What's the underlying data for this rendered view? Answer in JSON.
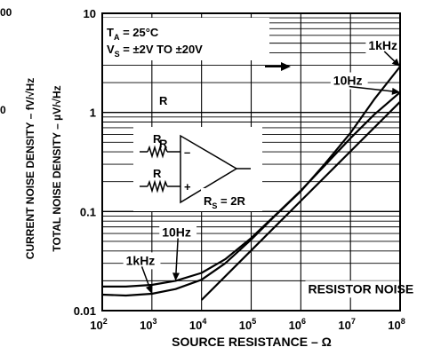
{
  "chart_data": {
    "type": "line",
    "x_scale": "log",
    "y_scale": "log",
    "xlim": [
      100,
      100000000
    ],
    "ylim": [
      0.01,
      10
    ],
    "grid": true,
    "xlabel": "SOURCE RESISTANCE – Ω",
    "ylabel_inner": "TOTAL NOISE DENSITY – µV/√Hz",
    "ylabel_outer": "CURRENT NOISE DENSITY – fV/√Hz",
    "left_axis_fragment_top": "00",
    "left_axis_fragment_mid": "0",
    "x_ticks": [
      {
        "value": 100,
        "base": "10",
        "exp": "2"
      },
      {
        "value": 1000,
        "base": "10",
        "exp": "3"
      },
      {
        "value": 10000,
        "base": "10",
        "exp": "4"
      },
      {
        "value": 100000,
        "base": "10",
        "exp": "5"
      },
      {
        "value": 1000000,
        "base": "10",
        "exp": "6"
      },
      {
        "value": 10000000,
        "base": "10",
        "exp": "7"
      },
      {
        "value": 100000000,
        "base": "10",
        "exp": "8"
      }
    ],
    "y_ticks": [
      {
        "value": 10,
        "label": "10"
      },
      {
        "value": 1,
        "label": "1"
      },
      {
        "value": 0.1,
        "label": "0.1"
      },
      {
        "value": 0.01,
        "label": "0.01"
      }
    ],
    "conditions": {
      "ta": {
        "main": "T",
        "sub": "A",
        "rest": " = 25°C"
      },
      "vs": {
        "main": "V",
        "sub": "S",
        "rest": " = ±2V TO ±20V"
      }
    },
    "series": [
      {
        "name": "1kHz",
        "x": [
          100,
          300,
          1000,
          3000,
          10000,
          30000,
          100000,
          300000,
          1000000,
          3000000,
          10000000,
          30000000,
          100000000
        ],
        "y": [
          0.0145,
          0.0142,
          0.0148,
          0.0165,
          0.0205,
          0.03,
          0.052,
          0.09,
          0.16,
          0.3,
          0.62,
          1.35,
          2.9
        ]
      },
      {
        "name": "10Hz",
        "x": [
          100,
          300,
          1000,
          3000,
          10000,
          30000,
          100000,
          300000,
          1000000,
          3000000,
          10000000,
          30000000,
          100000000
        ],
        "y": [
          0.0175,
          0.0175,
          0.0182,
          0.02,
          0.024,
          0.033,
          0.054,
          0.091,
          0.162,
          0.29,
          0.55,
          0.95,
          1.6
        ]
      },
      {
        "name": "RESISTOR NOISE",
        "x": [
          10000,
          100000,
          1000000,
          10000000,
          100000000
        ],
        "y": [
          0.0128,
          0.0405,
          0.128,
          0.405,
          1.28
        ]
      }
    ],
    "annotations": [
      {
        "text": "1kHz",
        "x": 100000000,
        "y": 2.9,
        "label_at": [
          23000000,
          4.3
        ]
      },
      {
        "text": "10Hz",
        "x": 100000000,
        "y": 1.6,
        "label_at": [
          4500000,
          1.9
        ]
      },
      {
        "text": "10Hz",
        "x": 3000,
        "y": 0.02,
        "label_at": [
          1600,
          0.056
        ]
      },
      {
        "text": "1kHz",
        "x": 1000,
        "y": 0.0148,
        "label_at": [
          300,
          0.029
        ]
      },
      {
        "text": "RESISTOR NOISE",
        "label_at": [
          1400000,
          0.015
        ]
      },
      {
        "text": "R",
        "label_at": [
          1400,
          1.2
        ]
      },
      {
        "text": "R",
        "label_at": [
          1400,
          0.44
        ]
      }
    ],
    "circuit": {
      "r1": "R",
      "r2": "R",
      "minus": "–",
      "plus": "+",
      "rs": {
        "main": "R",
        "sub": "S",
        "rest": " = 2R"
      }
    }
  }
}
